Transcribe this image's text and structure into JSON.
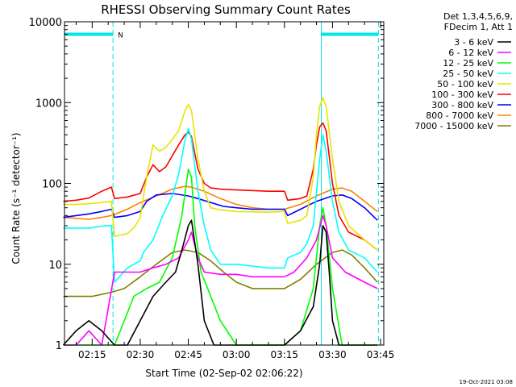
{
  "chart_data": {
    "type": "line",
    "title": "RHESSI Observing Summary Count Rates",
    "xlabel": "Start Time (02-Sep-02 02:06:22)",
    "ylabel": "Count Rate (s⁻¹ detector⁻¹)",
    "yscale": "log",
    "xlim": [
      "02:06:22",
      "03:46:00"
    ],
    "ylim": [
      1,
      10000
    ],
    "xticks": [
      "02:15",
      "02:30",
      "02:45",
      "03:00",
      "03:15",
      "03:30",
      "03:45"
    ],
    "yticks": [
      "1",
      "10",
      "100",
      "1000",
      "10000"
    ],
    "grid": false,
    "legend_position": "outside right",
    "legend_header": [
      "Det 1,3,4,5,6,9,",
      "FDecim 1, Att 1"
    ],
    "footer_date": "19-Oct-2021 03:08",
    "annotations": [
      {
        "text": "N",
        "time": "02:21:30"
      }
    ],
    "markers": {
      "night_intervals": [
        [
          "02:06:22",
          "02:21:30"
        ],
        [
          "03:26:30",
          "03:44:20"
        ]
      ],
      "night_level": 7000,
      "color": "#00e5e5"
    },
    "series": [
      {
        "name": "3 - 6 keV",
        "color": "#000000",
        "points": [
          [
            "02:06",
            "1"
          ],
          [
            "02:10",
            "1.5"
          ],
          [
            "02:14",
            "2"
          ],
          [
            "02:18",
            "1.5"
          ],
          [
            "02:22",
            "1"
          ],
          [
            "02:26",
            "1"
          ],
          [
            "02:30",
            "2"
          ],
          [
            "02:34",
            "4"
          ],
          [
            "02:38",
            "6"
          ],
          [
            "02:41",
            "8"
          ],
          [
            "02:43",
            "15"
          ],
          [
            "02:45",
            "30"
          ],
          [
            "02:46",
            "35"
          ],
          [
            "02:48",
            "10"
          ],
          [
            "02:50",
            "2"
          ],
          [
            "02:53",
            "1"
          ],
          [
            "03:00",
            "1"
          ],
          [
            "03:10",
            "1"
          ],
          [
            "03:15",
            "1"
          ],
          [
            "03:20",
            "1.5"
          ],
          [
            "03:24",
            "3"
          ],
          [
            "03:26",
            "10"
          ],
          [
            "03:27",
            "30"
          ],
          [
            "03:28",
            "25"
          ],
          [
            "03:29",
            "8"
          ],
          [
            "03:30",
            "2"
          ],
          [
            "03:32",
            "1"
          ],
          [
            "03:40",
            "1"
          ],
          [
            "03:44",
            "1"
          ]
        ]
      },
      {
        "name": "6 - 12 keV",
        "color": "#ff00ff",
        "points": [
          [
            "02:06",
            "1"
          ],
          [
            "02:10",
            "1"
          ],
          [
            "02:14",
            "1.5"
          ],
          [
            "02:18",
            "1"
          ],
          [
            "02:22",
            "8"
          ],
          [
            "02:26",
            "8"
          ],
          [
            "02:30",
            "8"
          ],
          [
            "02:34",
            "9"
          ],
          [
            "02:38",
            "10"
          ],
          [
            "02:42",
            "12"
          ],
          [
            "02:45",
            "20"
          ],
          [
            "02:46",
            "25"
          ],
          [
            "02:48",
            "12"
          ],
          [
            "02:50",
            "8"
          ],
          [
            "02:55",
            "7.5"
          ],
          [
            "03:00",
            "7.5"
          ],
          [
            "03:05",
            "7"
          ],
          [
            "03:10",
            "7"
          ],
          [
            "03:15",
            "7"
          ],
          [
            "03:18",
            "8"
          ],
          [
            "03:22",
            "12"
          ],
          [
            "03:25",
            "20"
          ],
          [
            "03:27",
            "40"
          ],
          [
            "03:28",
            "30"
          ],
          [
            "03:30",
            "12"
          ],
          [
            "03:34",
            "8"
          ],
          [
            "03:40",
            "6"
          ],
          [
            "03:44",
            "5"
          ]
        ]
      },
      {
        "name": "12 - 25 keV",
        "color": "#00ff00",
        "points": [
          [
            "02:06",
            "1"
          ],
          [
            "02:10",
            "1"
          ],
          [
            "02:15",
            "1"
          ],
          [
            "02:22",
            "1"
          ],
          [
            "02:25",
            "2"
          ],
          [
            "02:28",
            "4"
          ],
          [
            "02:32",
            "5"
          ],
          [
            "02:36",
            "6"
          ],
          [
            "02:40",
            "12"
          ],
          [
            "02:43",
            "40"
          ],
          [
            "02:45",
            "150"
          ],
          [
            "02:46",
            "120"
          ],
          [
            "02:47",
            "30"
          ],
          [
            "02:49",
            "8"
          ],
          [
            "02:52",
            "4"
          ],
          [
            "02:55",
            "2"
          ],
          [
            "03:00",
            "1"
          ],
          [
            "03:10",
            "1"
          ],
          [
            "03:15",
            "1"
          ],
          [
            "03:20",
            "1.5"
          ],
          [
            "03:24",
            "5"
          ],
          [
            "03:26",
            "30"
          ],
          [
            "03:27",
            "50"
          ],
          [
            "03:28",
            "30"
          ],
          [
            "03:30",
            "5"
          ],
          [
            "03:33",
            "1"
          ],
          [
            "03:40",
            "1"
          ],
          [
            "03:44",
            "1"
          ]
        ]
      },
      {
        "name": "25 - 50 keV",
        "color": "#00ffff",
        "points": [
          [
            "02:06",
            "28"
          ],
          [
            "02:10",
            "28"
          ],
          [
            "02:14",
            "28"
          ],
          [
            "02:19",
            "30"
          ],
          [
            "02:21",
            "30"
          ],
          [
            "02:22",
            "6"
          ],
          [
            "02:26",
            "9"
          ],
          [
            "02:30",
            "11"
          ],
          [
            "02:31",
            "14"
          ],
          [
            "02:34",
            "20"
          ],
          [
            "02:37",
            "40"
          ],
          [
            "02:40",
            "70"
          ],
          [
            "02:42",
            "130"
          ],
          [
            "02:44",
            "350"
          ],
          [
            "02:45",
            "480"
          ],
          [
            "02:46",
            "350"
          ],
          [
            "02:48",
            "80"
          ],
          [
            "02:50",
            "30"
          ],
          [
            "02:52",
            "15"
          ],
          [
            "02:55",
            "10"
          ],
          [
            "03:00",
            "10"
          ],
          [
            "03:10",
            "9"
          ],
          [
            "03:15",
            "9"
          ],
          [
            "03:16",
            "12"
          ],
          [
            "03:20",
            "14"
          ],
          [
            "03:22",
            "18"
          ],
          [
            "03:24",
            "30"
          ],
          [
            "03:26",
            "200"
          ],
          [
            "03:27",
            "400"
          ],
          [
            "03:28",
            "250"
          ],
          [
            "03:30",
            "60"
          ],
          [
            "03:32",
            "25"
          ],
          [
            "03:35",
            "15"
          ],
          [
            "03:40",
            "12"
          ],
          [
            "03:44",
            "8"
          ]
        ]
      },
      {
        "name": "50 - 100 keV",
        "color": "#e5e500",
        "points": [
          [
            "02:06",
            "55"
          ],
          [
            "02:10",
            "55"
          ],
          [
            "02:14",
            "56"
          ],
          [
            "02:18",
            "58"
          ],
          [
            "02:21",
            "60"
          ],
          [
            "02:22",
            "22"
          ],
          [
            "02:26",
            "24"
          ],
          [
            "02:28",
            "28"
          ],
          [
            "02:30",
            "38"
          ],
          [
            "02:32",
            "120"
          ],
          [
            "02:34",
            "300"
          ],
          [
            "02:36",
            "250"
          ],
          [
            "02:38",
            "280"
          ],
          [
            "02:40",
            "350"
          ],
          [
            "02:42",
            "450"
          ],
          [
            "02:44",
            "800"
          ],
          [
            "02:45",
            "950"
          ],
          [
            "02:46",
            "800"
          ],
          [
            "02:48",
            "200"
          ],
          [
            "02:50",
            "80"
          ],
          [
            "02:52",
            "50"
          ],
          [
            "02:55",
            "47"
          ],
          [
            "03:00",
            "45"
          ],
          [
            "03:10",
            "44"
          ],
          [
            "03:15",
            "45"
          ],
          [
            "03:16",
            "32"
          ],
          [
            "03:20",
            "35"
          ],
          [
            "03:22",
            "40"
          ],
          [
            "03:24",
            "120"
          ],
          [
            "03:25",
            "400"
          ],
          [
            "03:26",
            "900"
          ],
          [
            "03:27",
            "1150"
          ],
          [
            "03:28",
            "900"
          ],
          [
            "03:30",
            "200"
          ],
          [
            "03:32",
            "60"
          ],
          [
            "03:35",
            "30"
          ],
          [
            "03:40",
            "20"
          ],
          [
            "03:44",
            "15"
          ]
        ]
      },
      {
        "name": "100 - 300 keV",
        "color": "#ff0000",
        "points": [
          [
            "02:06",
            "60"
          ],
          [
            "02:10",
            "62"
          ],
          [
            "02:14",
            "66"
          ],
          [
            "02:18",
            "80"
          ],
          [
            "02:21",
            "90"
          ],
          [
            "02:22",
            "65"
          ],
          [
            "02:26",
            "68"
          ],
          [
            "02:30",
            "75"
          ],
          [
            "02:32",
            "120"
          ],
          [
            "02:34",
            "170"
          ],
          [
            "02:36",
            "140"
          ],
          [
            "02:38",
            "160"
          ],
          [
            "02:40",
            "220"
          ],
          [
            "02:42",
            "300"
          ],
          [
            "02:44",
            "400"
          ],
          [
            "02:45",
            "430"
          ],
          [
            "02:46",
            "380"
          ],
          [
            "02:48",
            "150"
          ],
          [
            "02:50",
            "100"
          ],
          [
            "02:52",
            "88"
          ],
          [
            "02:55",
            "85"
          ],
          [
            "03:00",
            "83"
          ],
          [
            "03:10",
            "80"
          ],
          [
            "03:15",
            "80"
          ],
          [
            "03:16",
            "62"
          ],
          [
            "03:20",
            "65"
          ],
          [
            "03:22",
            "70"
          ],
          [
            "03:24",
            "150"
          ],
          [
            "03:25",
            "300"
          ],
          [
            "03:26",
            "500"
          ],
          [
            "03:27",
            "560"
          ],
          [
            "03:28",
            "450"
          ],
          [
            "03:30",
            "100"
          ],
          [
            "03:32",
            "40"
          ],
          [
            "03:35",
            "25"
          ],
          [
            "03:40",
            "20"
          ],
          [
            "03:44",
            "15"
          ]
        ]
      },
      {
        "name": "300 - 800 keV",
        "color": "#0000ff",
        "points": [
          [
            "02:06",
            "38"
          ],
          [
            "02:10",
            "40"
          ],
          [
            "02:14",
            "42"
          ],
          [
            "02:18",
            "45"
          ],
          [
            "02:21",
            "48"
          ],
          [
            "02:22",
            "38"
          ],
          [
            "02:26",
            "40"
          ],
          [
            "02:30",
            "45"
          ],
          [
            "02:32",
            "60"
          ],
          [
            "02:35",
            "72"
          ],
          [
            "02:40",
            "75"
          ],
          [
            "02:45",
            "70"
          ],
          [
            "02:48",
            "65"
          ],
          [
            "02:52",
            "58"
          ],
          [
            "02:56",
            "52"
          ],
          [
            "03:00",
            "50"
          ],
          [
            "03:05",
            "48"
          ],
          [
            "03:10",
            "48"
          ],
          [
            "03:15",
            "48"
          ],
          [
            "03:16",
            "40"
          ],
          [
            "03:20",
            "48"
          ],
          [
            "03:25",
            "60"
          ],
          [
            "03:30",
            "70"
          ],
          [
            "03:33",
            "72"
          ],
          [
            "03:36",
            "65"
          ],
          [
            "03:40",
            "50"
          ],
          [
            "03:44",
            "35"
          ]
        ]
      },
      {
        "name": "800 - 7000 keV",
        "color": "#ff8000",
        "points": [
          [
            "02:06",
            "38"
          ],
          [
            "02:10",
            "37"
          ],
          [
            "02:14",
            "36"
          ],
          [
            "02:18",
            "38"
          ],
          [
            "02:21",
            "40"
          ],
          [
            "02:26",
            "48"
          ],
          [
            "02:30",
            "58"
          ],
          [
            "02:35",
            "70"
          ],
          [
            "02:40",
            "85"
          ],
          [
            "02:44",
            "92"
          ],
          [
            "02:46",
            "90"
          ],
          [
            "02:50",
            "80"
          ],
          [
            "02:55",
            "65"
          ],
          [
            "03:00",
            "55"
          ],
          [
            "03:05",
            "50"
          ],
          [
            "03:10",
            "48"
          ],
          [
            "03:15",
            "48"
          ],
          [
            "03:20",
            "55"
          ],
          [
            "03:25",
            "70"
          ],
          [
            "03:30",
            "85"
          ],
          [
            "03:33",
            "88"
          ],
          [
            "03:36",
            "80"
          ],
          [
            "03:40",
            "60"
          ],
          [
            "03:44",
            "45"
          ]
        ]
      },
      {
        "name": "7000 - 15000 keV",
        "color": "#808000",
        "points": [
          [
            "02:06",
            "4"
          ],
          [
            "02:10",
            "4"
          ],
          [
            "02:15",
            "4"
          ],
          [
            "02:21",
            "4.5"
          ],
          [
            "02:25",
            "5"
          ],
          [
            "02:30",
            "7"
          ],
          [
            "02:35",
            "10"
          ],
          [
            "02:40",
            "14"
          ],
          [
            "02:44",
            "15"
          ],
          [
            "02:48",
            "14"
          ],
          [
            "02:52",
            "11"
          ],
          [
            "02:56",
            "8"
          ],
          [
            "03:00",
            "6"
          ],
          [
            "03:05",
            "5"
          ],
          [
            "03:10",
            "5"
          ],
          [
            "03:15",
            "5"
          ],
          [
            "03:20",
            "6.5"
          ],
          [
            "03:25",
            "10"
          ],
          [
            "03:30",
            "14"
          ],
          [
            "03:33",
            "15"
          ],
          [
            "03:36",
            "13"
          ],
          [
            "03:40",
            "9"
          ],
          [
            "03:44",
            "6"
          ]
        ]
      }
    ]
  }
}
